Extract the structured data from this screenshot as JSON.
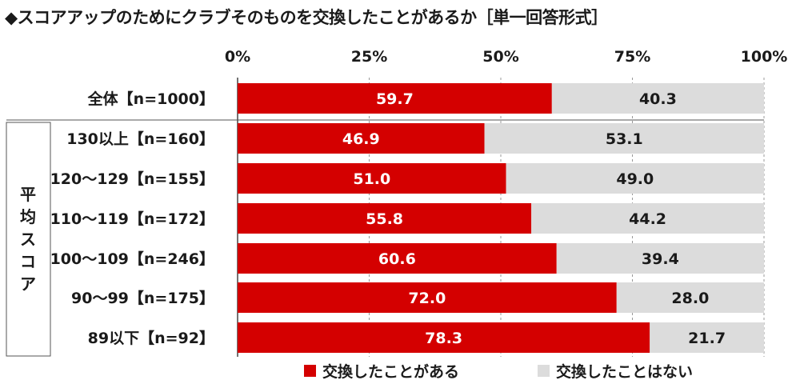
{
  "chart_data": {
    "type": "bar",
    "orientation": "horizontal",
    "stacked": true,
    "title": "◆スコアアップのためにクラブそのものを交換したことがあるか［単一回答形式］",
    "x_ticks": [
      "0%",
      "25%",
      "50%",
      "75%",
      "100%"
    ],
    "xlim": [
      0,
      100
    ],
    "group_label": "平均スコア",
    "categories": [
      "全体【n=1000】",
      "130以上【n=160】",
      "120～129【n=155】",
      "110～119【n=172】",
      "100～109【n=246】",
      "90～99【n=175】",
      "89以下【n=92】"
    ],
    "series": [
      {
        "name": "交換したことがある",
        "color": "#d40000",
        "values": [
          59.7,
          46.9,
          51.0,
          55.8,
          60.6,
          72.0,
          78.3
        ]
      },
      {
        "name": "交換したことはない",
        "color": "#dcdcdc",
        "values": [
          40.3,
          53.1,
          49.0,
          44.2,
          39.4,
          28.0,
          21.7
        ]
      }
    ],
    "legend": "bottom",
    "grid": "vertical-dashed"
  }
}
